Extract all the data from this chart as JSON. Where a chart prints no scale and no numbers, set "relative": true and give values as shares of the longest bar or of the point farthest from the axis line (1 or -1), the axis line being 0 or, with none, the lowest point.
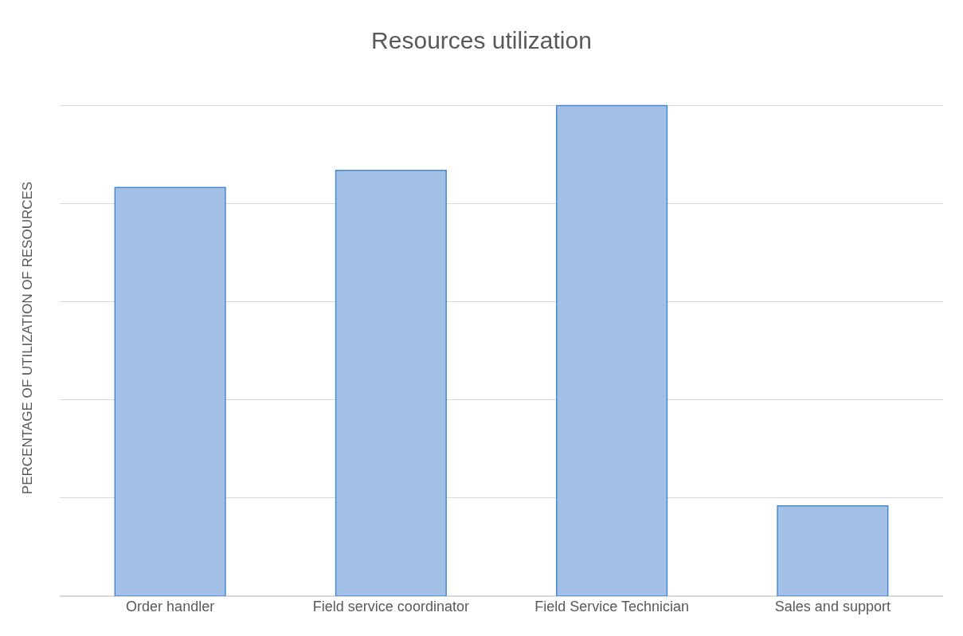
{
  "chart_data": {
    "type": "bar",
    "title": "Resources utilization",
    "ylabel": "PERCENTAGE OF UTILIZATION OF RESOURCES",
    "categories": [
      "Order handler",
      "Field service coordinator",
      "Field Service Technician",
      "Sales and support"
    ],
    "values": [
      0.833,
      0.868,
      1,
      0.184
    ],
    "color": "#a3c1e6",
    "relative": true,
    "grid": "y",
    "legend": false
  }
}
